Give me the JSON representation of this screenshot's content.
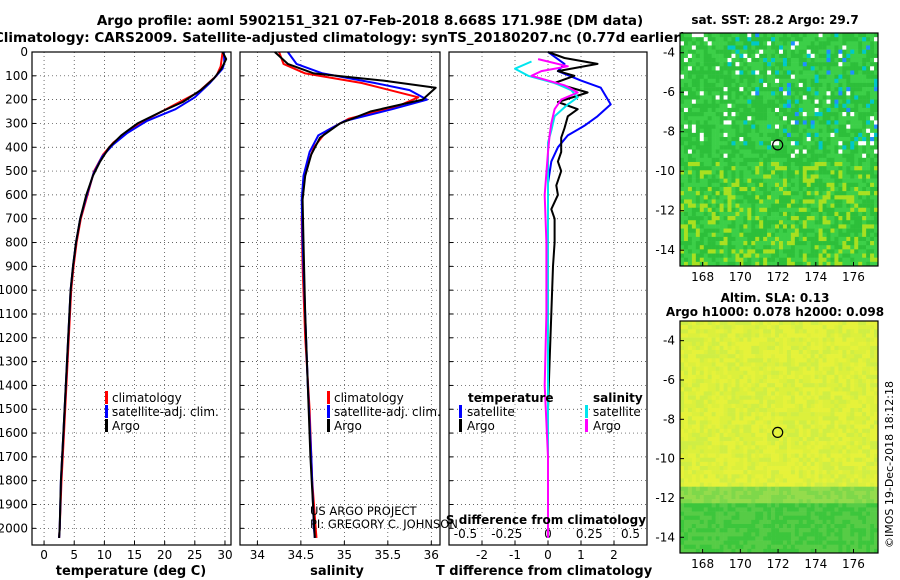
{
  "header": {
    "line1": "Argo profile: aoml 5902151_321 07-Feb-2018 8.668S 171.98E (DM data)",
    "line2": "Climatology: CARS2009. Satellite-adjusted climatology: synTS_20180207.nc (0.77d earlier)"
  },
  "colors": {
    "climatology": "#ff0000",
    "satellite": "#0000ff",
    "argo": "#000000",
    "satellite_s": "#00e5ee",
    "argo_s": "#ff00ff"
  },
  "depth_ticks": [
    "0",
    "100",
    "200",
    "300",
    "400",
    "500",
    "600",
    "700",
    "800",
    "900",
    "1000",
    "1100",
    "1200",
    "1300",
    "1400",
    "1500",
    "1600",
    "1700",
    "1800",
    "1900",
    "2000"
  ],
  "credit": {
    "line1": "US ARGO PROJECT",
    "line2": "PI: GREGORY C. JOHNSON"
  },
  "watermark": "©IMOS 19-Dec-2018 18:12:18",
  "map_sst": {
    "title": "sat. SST: 28.2 Argo: 29.7",
    "xticks": [
      "168",
      "170",
      "172",
      "174",
      "176"
    ],
    "yticks": [
      "-4",
      "-6",
      "-8",
      "-10",
      "-12",
      "-14"
    ]
  },
  "map_sla": {
    "title1": "Altim. SLA: 0.13",
    "title2": "Argo h1000: 0.078 h2000: 0.098",
    "xticks": [
      "168",
      "170",
      "172",
      "174",
      "176"
    ],
    "yticks": [
      "-4",
      "-6",
      "-8",
      "-10",
      "-12",
      "-14"
    ]
  },
  "chart_data": [
    {
      "type": "line",
      "title": "temperature",
      "xlabel": "temperature (deg C)",
      "ylabel": "",
      "xlim": [
        -2,
        31
      ],
      "ylim": [
        2070,
        0
      ],
      "xticks": [
        "0",
        "5",
        "10",
        "15",
        "20",
        "25",
        "30"
      ],
      "legend": [
        "climatology",
        "satellite-adj. clim.",
        "Argo"
      ],
      "series": [
        {
          "name": "climatology",
          "color": "#ff0000",
          "points": [
            [
              29.6,
              0
            ],
            [
              29.3,
              60
            ],
            [
              28.6,
              100
            ],
            [
              25.5,
              170
            ],
            [
              21,
              230
            ],
            [
              16.5,
              290
            ],
            [
              13.5,
              340
            ],
            [
              11.5,
              380
            ],
            [
              9.8,
              430
            ],
            [
              8.3,
              500
            ],
            [
              7.2,
              600
            ],
            [
              6.1,
              700
            ],
            [
              5.4,
              800
            ],
            [
              4.9,
              900
            ],
            [
              4.5,
              1000
            ],
            [
              4.1,
              1200
            ],
            [
              3.7,
              1400
            ],
            [
              3.3,
              1600
            ],
            [
              2.9,
              1800
            ],
            [
              2.6,
              2000
            ],
            [
              2.5,
              2040
            ]
          ]
        },
        {
          "name": "satellite-adj. clim.",
          "color": "#0000ff",
          "points": [
            [
              29.8,
              0
            ],
            [
              29.9,
              45
            ],
            [
              29.6,
              70
            ],
            [
              27.5,
              130
            ],
            [
              25,
              190
            ],
            [
              21.8,
              240
            ],
            [
              17,
              290
            ],
            [
              13.8,
              340
            ],
            [
              11.4,
              390
            ],
            [
              9.6,
              440
            ],
            [
              8.2,
              510
            ],
            [
              7.1,
              600
            ],
            [
              6.0,
              700
            ],
            [
              5.3,
              800
            ],
            [
              4.8,
              900
            ],
            [
              4.4,
              1000
            ],
            [
              4.0,
              1200
            ],
            [
              3.6,
              1400
            ],
            [
              3.2,
              1600
            ],
            [
              2.8,
              1800
            ],
            [
              2.6,
              2000
            ],
            [
              2.5,
              2040
            ]
          ]
        },
        {
          "name": "Argo",
          "color": "#000000",
          "points": [
            [
              29.6,
              0
            ],
            [
              30.2,
              30
            ],
            [
              29.4,
              70
            ],
            [
              28.2,
              110
            ],
            [
              26,
              160
            ],
            [
              23,
              210
            ],
            [
              19.5,
              250
            ],
            [
              15.5,
              300
            ],
            [
              12.8,
              350
            ],
            [
              10.8,
              400
            ],
            [
              9.3,
              460
            ],
            [
              8.1,
              520
            ],
            [
              7.0,
              600
            ],
            [
              6.0,
              700
            ],
            [
              5.3,
              800
            ],
            [
              4.8,
              900
            ],
            [
              4.4,
              1000
            ],
            [
              4.0,
              1200
            ],
            [
              3.6,
              1400
            ],
            [
              3.2,
              1600
            ],
            [
              2.8,
              1800
            ],
            [
              2.6,
              2000
            ],
            [
              2.5,
              2040
            ]
          ]
        }
      ]
    },
    {
      "type": "line",
      "title": "salinity",
      "xlabel": "salinity",
      "ylabel": "",
      "xlim": [
        33.8,
        36.1
      ],
      "ylim": [
        2070,
        0
      ],
      "xticks": [
        "34",
        "34.5",
        "35",
        "35.5",
        "36"
      ],
      "legend": [
        "climatology",
        "satellite-adj. clim.",
        "Argo"
      ],
      "series": [
        {
          "name": "climatology",
          "color": "#ff0000",
          "points": [
            [
              34.25,
              0
            ],
            [
              34.3,
              50
            ],
            [
              34.55,
              90
            ],
            [
              35.2,
              130
            ],
            [
              35.85,
              190
            ],
            [
              35.6,
              230
            ],
            [
              35.05,
              280
            ],
            [
              34.8,
              330
            ],
            [
              34.65,
              400
            ],
            [
              34.55,
              500
            ],
            [
              34.52,
              600
            ],
            [
              34.51,
              700
            ],
            [
              34.52,
              900
            ],
            [
              34.55,
              1200
            ],
            [
              34.6,
              1500
            ],
            [
              34.63,
              1800
            ],
            [
              34.67,
              2000
            ],
            [
              34.68,
              2040
            ]
          ]
        },
        {
          "name": "satellite-adj. clim.",
          "color": "#0000ff",
          "points": [
            [
              34.35,
              0
            ],
            [
              34.45,
              50
            ],
            [
              34.75,
              90
            ],
            [
              35.35,
              130
            ],
            [
              35.75,
              160
            ],
            [
              35.95,
              200
            ],
            [
              35.55,
              240
            ],
            [
              35.0,
              290
            ],
            [
              34.7,
              350
            ],
            [
              34.6,
              420
            ],
            [
              34.53,
              520
            ],
            [
              34.51,
              620
            ],
            [
              34.52,
              800
            ],
            [
              34.55,
              1100
            ],
            [
              34.58,
              1400
            ],
            [
              34.62,
              1700
            ],
            [
              34.65,
              2000
            ],
            [
              34.66,
              2040
            ]
          ]
        },
        {
          "name": "Argo",
          "color": "#000000",
          "points": [
            [
              34.2,
              0
            ],
            [
              34.35,
              50
            ],
            [
              34.65,
              90
            ],
            [
              35.45,
              120
            ],
            [
              36.05,
              150
            ],
            [
              35.9,
              200
            ],
            [
              35.3,
              250
            ],
            [
              34.95,
              300
            ],
            [
              34.72,
              360
            ],
            [
              34.62,
              430
            ],
            [
              34.55,
              520
            ],
            [
              34.52,
              620
            ],
            [
              34.53,
              800
            ],
            [
              34.55,
              1100
            ],
            [
              34.58,
              1400
            ],
            [
              34.61,
              1700
            ],
            [
              34.64,
              1900
            ],
            [
              34.66,
              2040
            ]
          ]
        }
      ]
    },
    {
      "type": "line",
      "title": "difference from climatology",
      "xlabel": "T difference from climatology",
      "x2label": "S difference from climatology",
      "xlim": [
        -3,
        3
      ],
      "ylim": [
        2070,
        0
      ],
      "xticks": [
        "-2",
        "-1",
        "0",
        "1",
        "2"
      ],
      "x2ticks": [
        "-0.5",
        "-0.25",
        "0",
        "0.25",
        "0.5"
      ],
      "legend": [
        "temperature",
        "satellite",
        "Argo",
        "salinity",
        "satellite",
        "Argo"
      ],
      "series": [
        {
          "name": "satellite",
          "color": "#0000ff",
          "points": [
            [
              0,
              0
            ],
            [
              0.5,
              50
            ],
            [
              0.3,
              80
            ],
            [
              1.0,
              120
            ],
            [
              1.6,
              150
            ],
            [
              1.9,
              220
            ],
            [
              1.5,
              270
            ],
            [
              1.1,
              310
            ],
            [
              0.6,
              350
            ],
            [
              0.3,
              400
            ],
            [
              0.1,
              460
            ],
            [
              0,
              550
            ],
            [
              0,
              800
            ],
            [
              0,
              1200
            ],
            [
              0,
              1600
            ],
            [
              0,
              2040
            ]
          ]
        },
        {
          "name": "Argo",
          "color": "#000000",
          "points": [
            [
              0,
              0
            ],
            [
              0.5,
              25
            ],
            [
              1.5,
              50
            ],
            [
              0.3,
              80
            ],
            [
              0.8,
              100
            ],
            [
              0.2,
              130
            ],
            [
              1.2,
              170
            ],
            [
              0.3,
              210
            ],
            [
              0.9,
              240
            ],
            [
              0.6,
              270
            ],
            [
              0.5,
              320
            ],
            [
              0.4,
              360
            ],
            [
              0.4,
              420
            ],
            [
              0.3,
              460
            ],
            [
              0.4,
              500
            ],
            [
              0.25,
              560
            ],
            [
              0.3,
              600
            ],
            [
              0.1,
              660
            ],
            [
              0.2,
              700
            ],
            [
              0.2,
              800
            ],
            [
              0.15,
              900
            ],
            [
              0.1,
              1100
            ],
            [
              0.05,
              1300
            ],
            [
              0,
              1500
            ],
            [
              0,
              1800
            ],
            [
              0,
              2040
            ]
          ]
        },
        {
          "name": "satellite",
          "color": "#00e5ee",
          "points": [
            [
              -0.5,
              40
            ],
            [
              -1.0,
              70
            ],
            [
              -0.6,
              100
            ],
            [
              0.2,
              130
            ],
            [
              0.7,
              160
            ],
            [
              0.9,
              190
            ],
            [
              0.6,
              220
            ],
            [
              0.2,
              270
            ],
            [
              0.1,
              330
            ],
            [
              0,
              380
            ],
            [
              0,
              450
            ],
            [
              0,
              520
            ],
            [
              0,
              600
            ],
            [
              0,
              900
            ],
            [
              0,
              1300
            ],
            [
              0,
              2040
            ]
          ]
        },
        {
          "name": "Argo",
          "color": "#ff00ff",
          "points": [
            [
              -0.3,
              30
            ],
            [
              0.6,
              60
            ],
            [
              -0.2,
              80
            ],
            [
              -0.5,
              100
            ],
            [
              0.5,
              140
            ],
            [
              0.9,
              170
            ],
            [
              0.4,
              200
            ],
            [
              0.2,
              240
            ],
            [
              0.1,
              300
            ],
            [
              0.05,
              350
            ],
            [
              0,
              420
            ],
            [
              -0.1,
              600
            ],
            [
              -0.05,
              800
            ],
            [
              -0.05,
              1100
            ],
            [
              -0.1,
              1400
            ],
            [
              0,
              1700
            ],
            [
              0,
              2040
            ]
          ]
        }
      ]
    }
  ]
}
